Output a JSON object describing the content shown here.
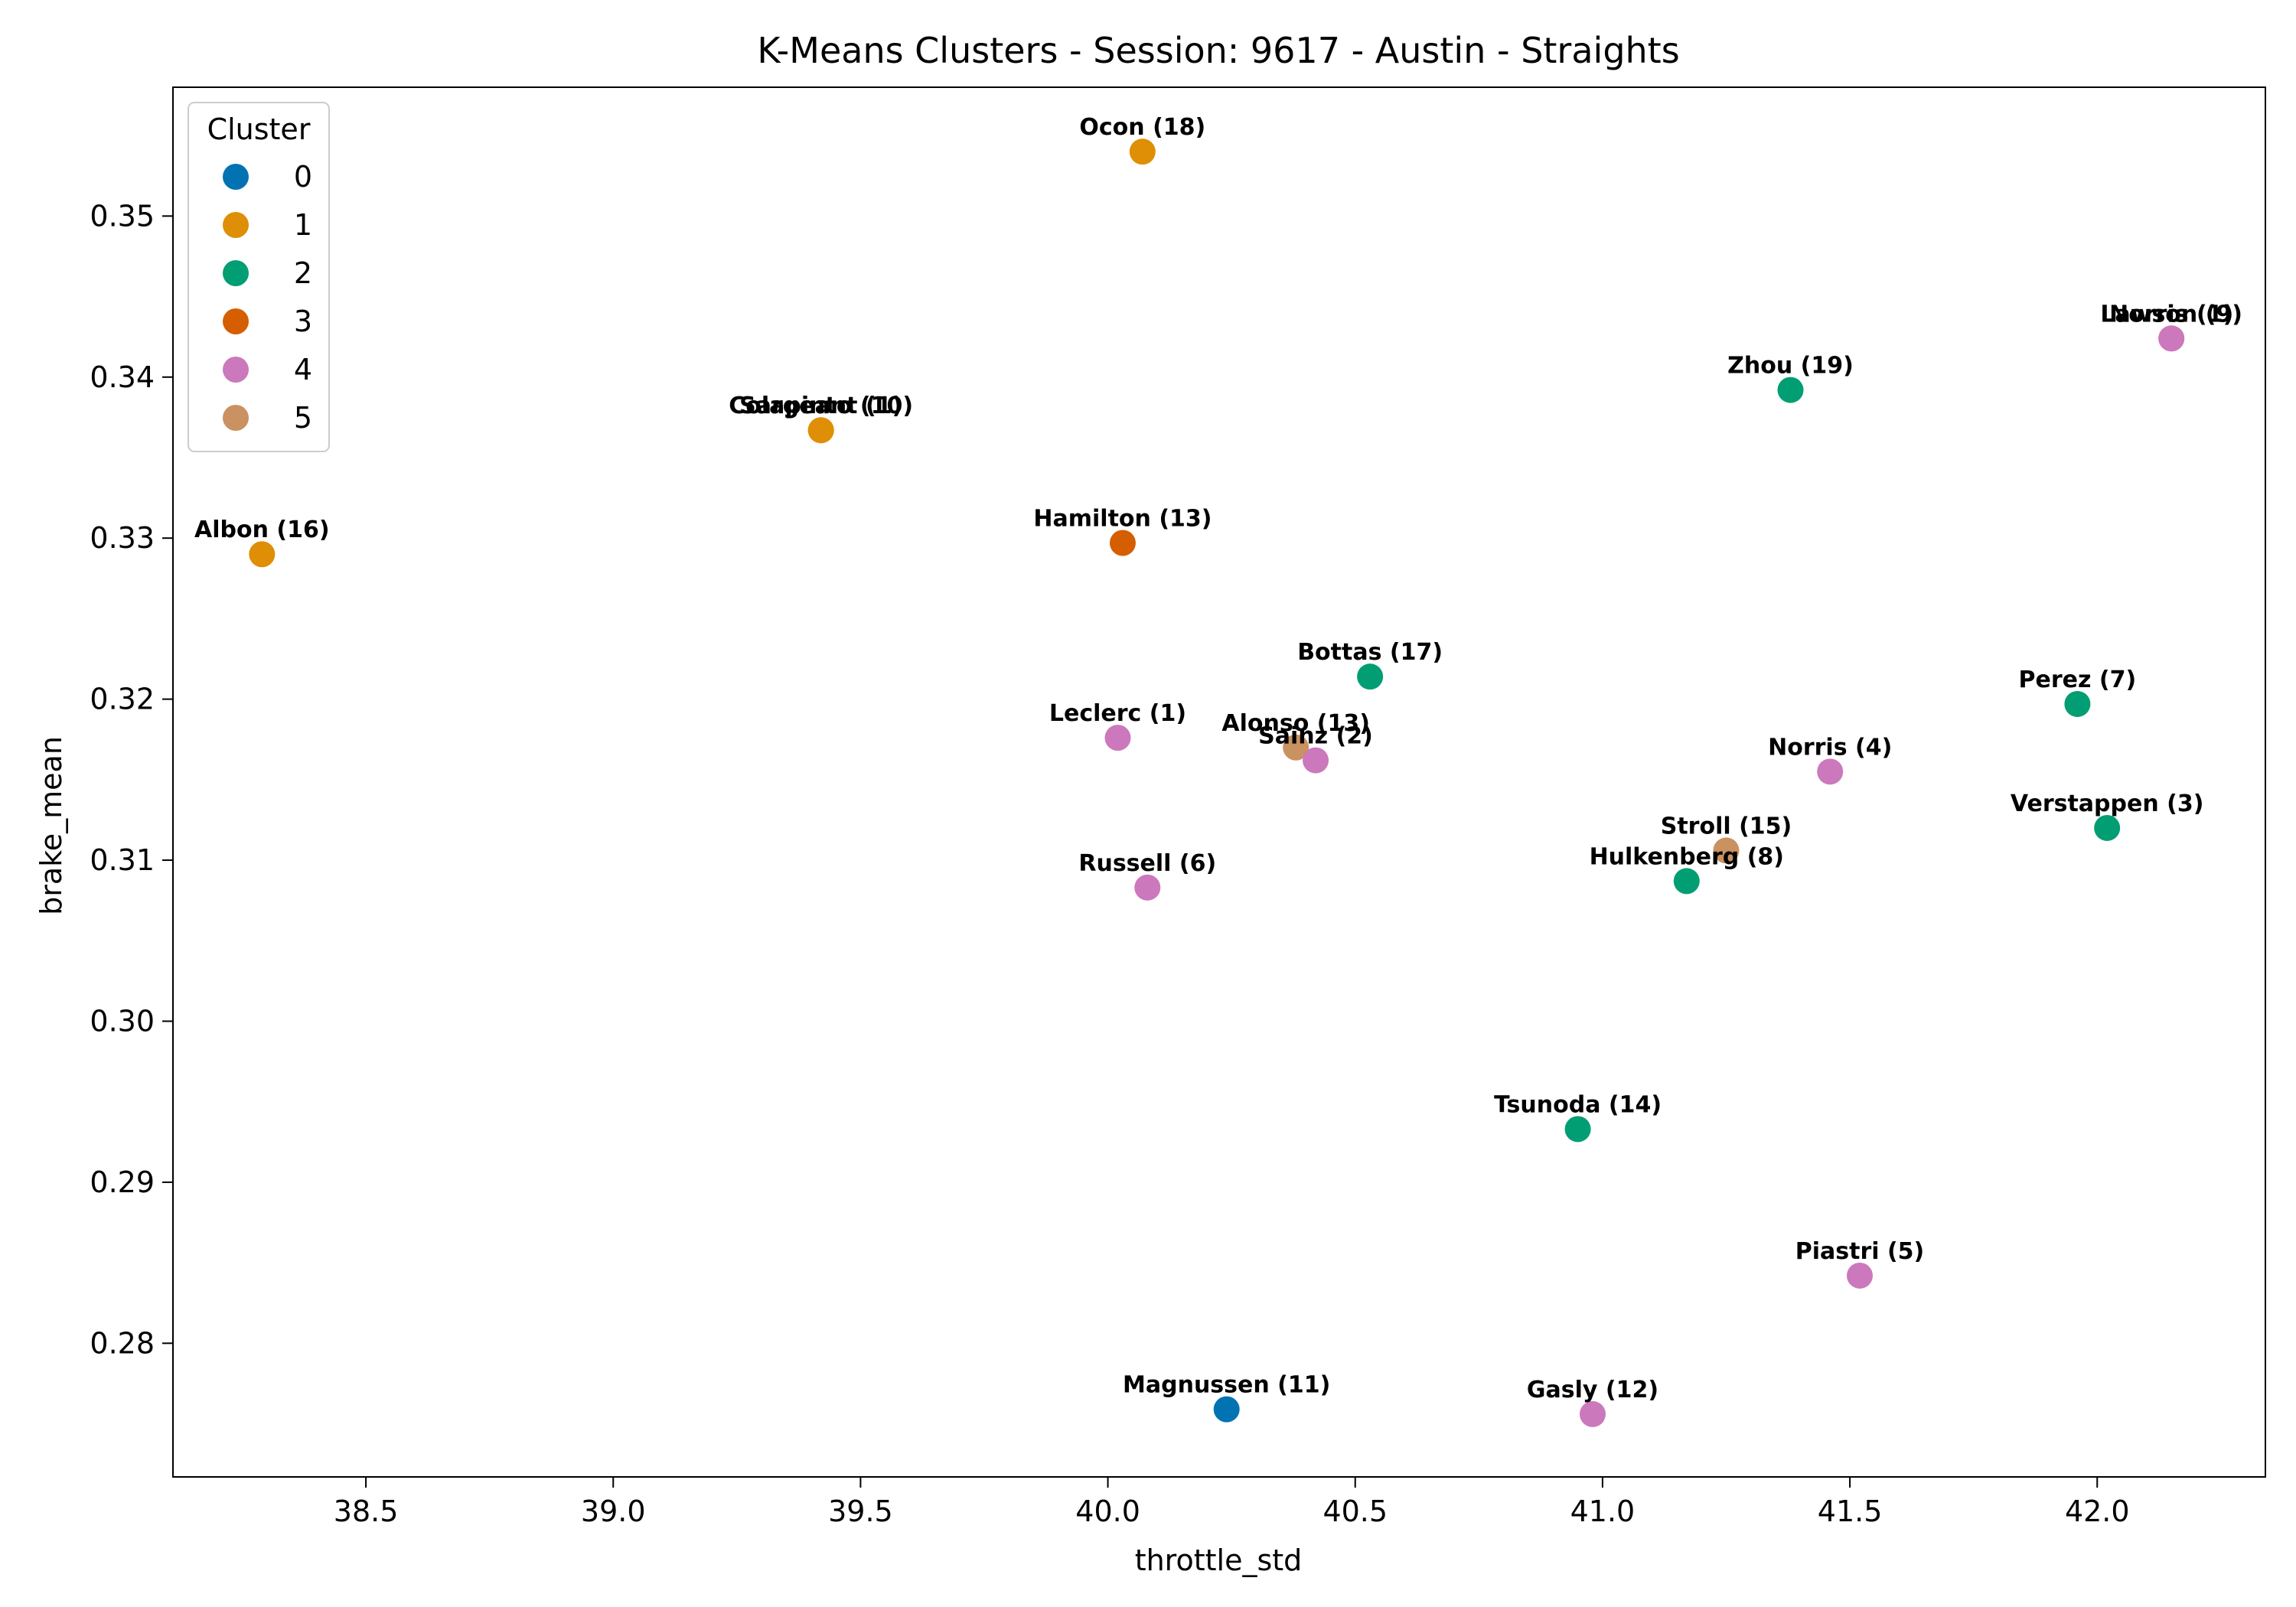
{
  "chart_data": {
    "type": "scatter",
    "title": "K-Means Clusters - Session: 9617 - Austin - Straights",
    "xlabel": "throttle_std",
    "ylabel": "brake_mean",
    "xlim": [
      38.11,
      42.34
    ],
    "ylim": [
      0.2717,
      0.358
    ],
    "xticks": [
      "38.5",
      "39.0",
      "39.5",
      "40.0",
      "40.5",
      "41.0",
      "41.5",
      "42.0"
    ],
    "yticks": [
      "0.28",
      "0.29",
      "0.30",
      "0.31",
      "0.32",
      "0.33",
      "0.34",
      "0.35"
    ],
    "grid": false,
    "legend": {
      "title": "Cluster",
      "placement": "top-left",
      "entries": [
        {
          "label": "0",
          "color": "#0173b2"
        },
        {
          "label": "1",
          "color": "#de8f05"
        },
        {
          "label": "2",
          "color": "#029e73"
        },
        {
          "label": "3",
          "color": "#d55e00"
        },
        {
          "label": "4",
          "color": "#cc78bc"
        },
        {
          "label": "5",
          "color": "#ca9161"
        }
      ]
    },
    "points": [
      {
        "label": "Ocon (18)",
        "x": 40.07,
        "y": 0.354,
        "cluster": 1
      },
      {
        "label": "Lawson (9)",
        "x": 42.15,
        "y": 0.3424,
        "cluster": 4
      },
      {
        "label": "Norris (1)",
        "x": 42.15,
        "y": 0.3424,
        "cluster": 4
      },
      {
        "label": "Zhou (19)",
        "x": 41.38,
        "y": 0.3392,
        "cluster": 2
      },
      {
        "label": "Colapinto (10)",
        "x": 39.42,
        "y": 0.3367,
        "cluster": 1
      },
      {
        "label": "Sargeant (1)",
        "x": 39.42,
        "y": 0.3367,
        "cluster": 1
      },
      {
        "label": "Albon (16)",
        "x": 38.29,
        "y": 0.329,
        "cluster": 1
      },
      {
        "label": "Hamilton (13)",
        "x": 40.03,
        "y": 0.3297,
        "cluster": 3
      },
      {
        "label": "Bottas (17)",
        "x": 40.53,
        "y": 0.3214,
        "cluster": 2
      },
      {
        "label": "Perez (7)",
        "x": 41.96,
        "y": 0.3197,
        "cluster": 2
      },
      {
        "label": "Leclerc (1)",
        "x": 40.02,
        "y": 0.3176,
        "cluster": 4
      },
      {
        "label": "Alonso (13)",
        "x": 40.38,
        "y": 0.317,
        "cluster": 5
      },
      {
        "label": "Sainz (2)",
        "x": 40.42,
        "y": 0.3162,
        "cluster": 4
      },
      {
        "label": "Norris (4)",
        "x": 41.46,
        "y": 0.3155,
        "cluster": 4
      },
      {
        "label": "Verstappen (3)",
        "x": 42.02,
        "y": 0.312,
        "cluster": 2
      },
      {
        "label": "Stroll (15)",
        "x": 41.25,
        "y": 0.3106,
        "cluster": 5
      },
      {
        "label": "Hulkenberg (8)",
        "x": 41.17,
        "y": 0.3087,
        "cluster": 2
      },
      {
        "label": "Russell (6)",
        "x": 40.08,
        "y": 0.3083,
        "cluster": 4
      },
      {
        "label": "Tsunoda (14)",
        "x": 40.95,
        "y": 0.2933,
        "cluster": 2
      },
      {
        "label": "Piastri (5)",
        "x": 41.52,
        "y": 0.2842,
        "cluster": 4
      },
      {
        "label": "Magnussen (11)",
        "x": 40.24,
        "y": 0.2759,
        "cluster": 0
      },
      {
        "label": "Gasly (12)",
        "x": 40.98,
        "y": 0.2756,
        "cluster": 4
      }
    ]
  }
}
